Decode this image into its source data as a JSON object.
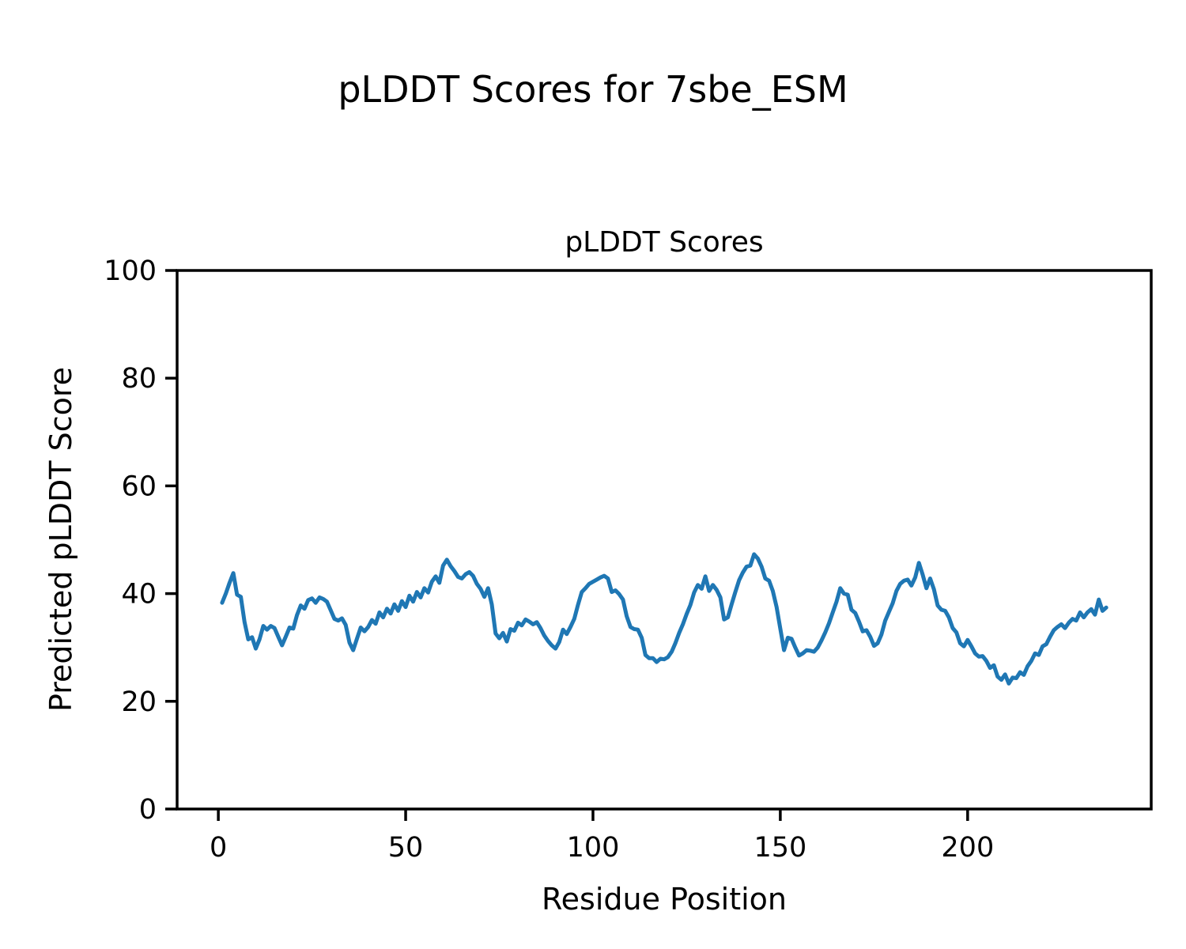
{
  "page": {
    "suptitle": "pLDDT Scores for 7sbe_ESM"
  },
  "chart_data": {
    "type": "line",
    "title": "pLDDT Scores",
    "xlabel": "Residue Position",
    "ylabel": "Predicted pLDDT Score",
    "legend": "none",
    "grid": false,
    "line_color": "#1f77b4",
    "line_width": 5,
    "xlim": [
      -11,
      249
    ],
    "ylim": [
      0,
      100
    ],
    "xticks": [
      0,
      50,
      100,
      150,
      200
    ],
    "yticks": [
      0,
      20,
      40,
      60,
      80,
      100
    ],
    "x_start": 1,
    "x_step": 1,
    "values": [
      38.3,
      40.0,
      42.0,
      43.8,
      39.8,
      39.4,
      34.7,
      31.5,
      31.9,
      29.8,
      31.5,
      34.0,
      33.3,
      34.0,
      33.6,
      32.0,
      30.4,
      32.0,
      33.7,
      33.5,
      36.0,
      37.8,
      37.2,
      38.8,
      39.1,
      38.3,
      39.3,
      39.0,
      38.5,
      36.9,
      35.3,
      35.0,
      35.4,
      34.2,
      30.9,
      29.5,
      31.6,
      33.7,
      33.0,
      33.8,
      35.1,
      34.4,
      36.5,
      35.6,
      37.2,
      36.3,
      38.0,
      36.8,
      38.6,
      37.5,
      39.6,
      38.5,
      40.3,
      39.3,
      41.0,
      40.2,
      42.2,
      43.2,
      42.0,
      45.2,
      46.3,
      45.1,
      44.2,
      43.1,
      42.8,
      43.6,
      44.0,
      43.3,
      41.8,
      40.9,
      39.4,
      41.0,
      38.0,
      32.6,
      31.7,
      32.7,
      31.1,
      33.4,
      33.1,
      34.6,
      34.1,
      35.2,
      34.8,
      34.3,
      34.7,
      33.6,
      32.2,
      31.2,
      30.4,
      29.8,
      31.0,
      33.3,
      32.5,
      33.8,
      35.3,
      37.9,
      40.3,
      41.0,
      41.8,
      42.2,
      42.6,
      43.0,
      43.3,
      42.8,
      40.3,
      40.6,
      39.9,
      38.9,
      35.8,
      33.8,
      33.4,
      33.3,
      31.8,
      28.6,
      28.0,
      28.0,
      27.3,
      27.9,
      27.8,
      28.2,
      29.2,
      30.8,
      32.7,
      34.3,
      36.2,
      37.9,
      40.2,
      41.6,
      40.9,
      43.2,
      40.5,
      41.6,
      40.7,
      39.3,
      35.2,
      35.6,
      38.0,
      40.3,
      42.5,
      43.9,
      45.0,
      45.2,
      47.3,
      46.5,
      45.0,
      42.8,
      42.4,
      40.5,
      37.5,
      33.5,
      29.5,
      31.8,
      31.6,
      30.0,
      28.5,
      28.9,
      29.5,
      29.4,
      29.2,
      30.0,
      31.3,
      32.8,
      34.5,
      36.5,
      38.5,
      41.0,
      40.0,
      39.8,
      37.0,
      36.4,
      34.8,
      33.0,
      33.2,
      32.0,
      30.3,
      30.8,
      32.4,
      35.0,
      36.6,
      38.2,
      40.5,
      41.8,
      42.4,
      42.6,
      41.5,
      43.0,
      45.7,
      43.5,
      41.0,
      42.8,
      40.8,
      37.8,
      37.0,
      36.8,
      35.6,
      33.6,
      32.8,
      30.8,
      30.2,
      31.4,
      30.2,
      28.9,
      28.3,
      28.4,
      27.5,
      26.2,
      26.7,
      24.6,
      24.0,
      25.0,
      23.3,
      24.4,
      24.3,
      25.4,
      24.9,
      26.5,
      27.5,
      28.9,
      28.6,
      30.2,
      30.6,
      32.0,
      33.2,
      33.8,
      34.3,
      33.6,
      34.6,
      35.3,
      35.0,
      36.5,
      35.6,
      36.5,
      37.1,
      36.1,
      38.9,
      36.8,
      37.4
    ]
  }
}
